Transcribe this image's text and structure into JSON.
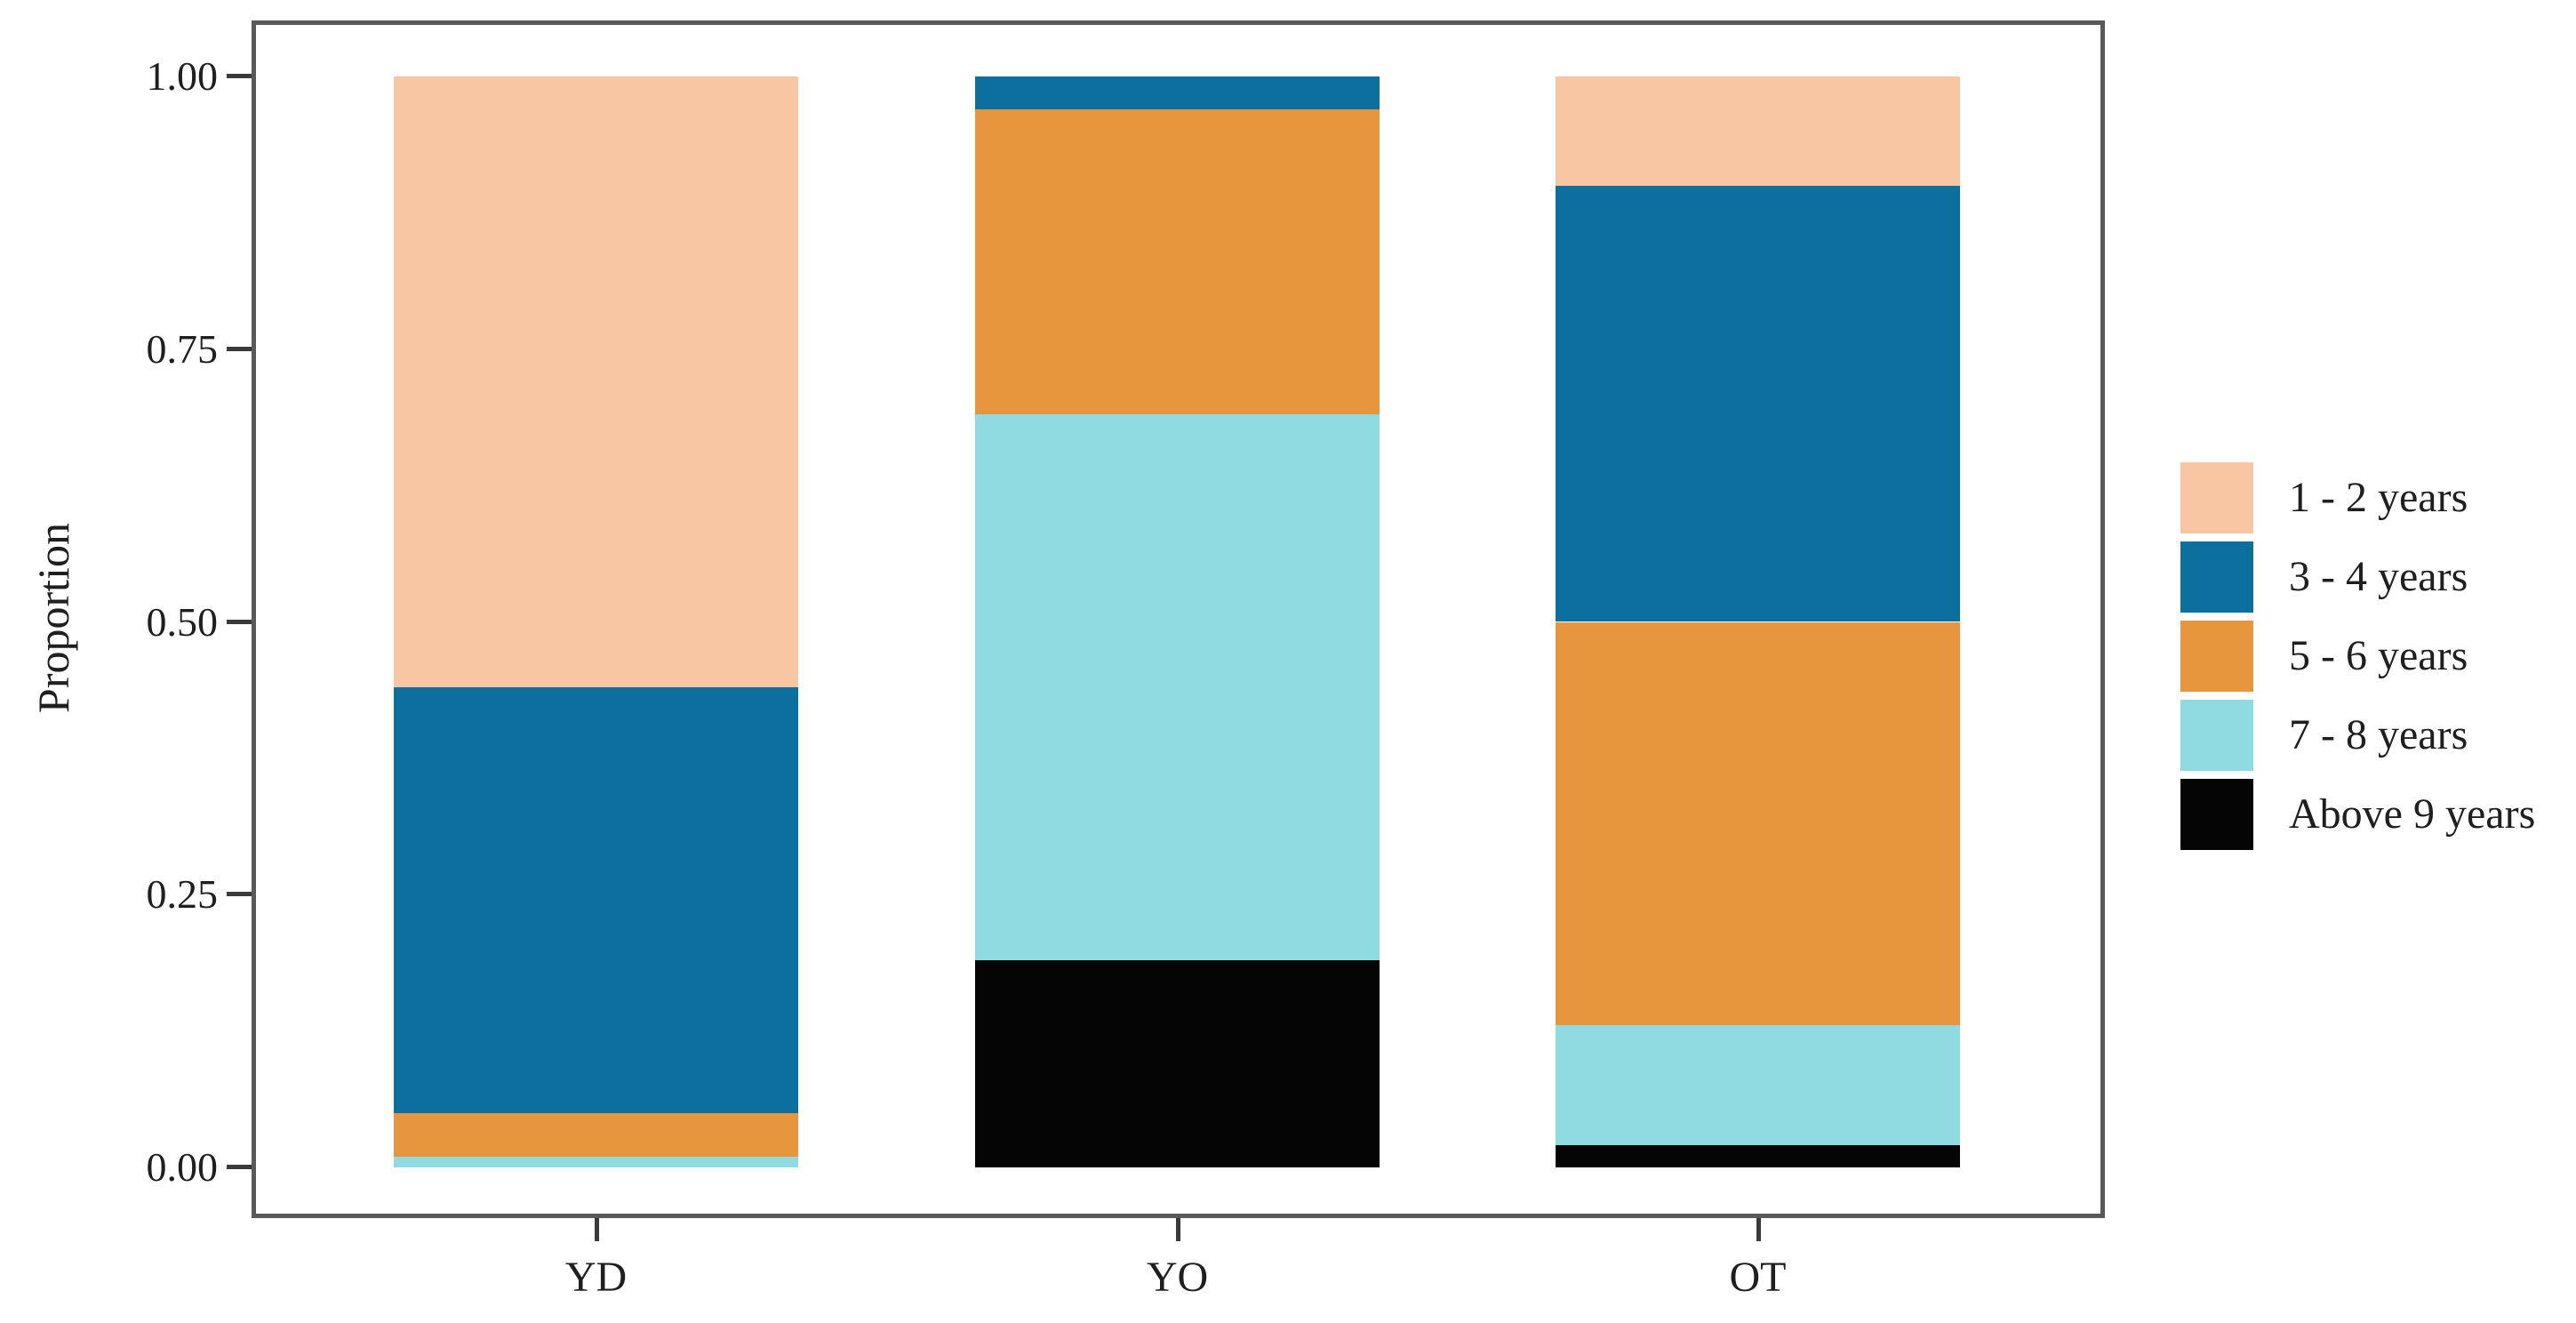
{
  "chart_data": {
    "type": "bar",
    "stacked": true,
    "title": "",
    "xlabel": "",
    "ylabel": "Proportion",
    "categories": [
      "YD",
      "YO",
      "OT"
    ],
    "series": [
      {
        "name": "1 - 2 years",
        "color": "#f8c6a3",
        "values": [
          0.56,
          0.0,
          0.1
        ]
      },
      {
        "name": "3 - 4 years",
        "color": "#0d6f9e",
        "values": [
          0.39,
          0.03,
          0.4
        ]
      },
      {
        "name": "5 - 6 years",
        "color": "#e8963e",
        "values": [
          0.04,
          0.28,
          0.37
        ]
      },
      {
        "name": "7 - 8 years",
        "color": "#90dbe1",
        "values": [
          0.01,
          0.5,
          0.11
        ]
      },
      {
        "name": "Above 9 years",
        "color": "#050505",
        "values": [
          0.0,
          0.19,
          0.02
        ]
      }
    ],
    "stack_order_bottom_to_top": [
      "Above 9 years",
      "7 - 8 years",
      "5 - 6 years",
      "3 - 4 years",
      "1 - 2 years"
    ],
    "yticks": [
      "0.00",
      "0.25",
      "0.50",
      "0.75",
      "1.00"
    ],
    "ylim": [
      0,
      1
    ],
    "grid": false,
    "legend_position": "right"
  }
}
